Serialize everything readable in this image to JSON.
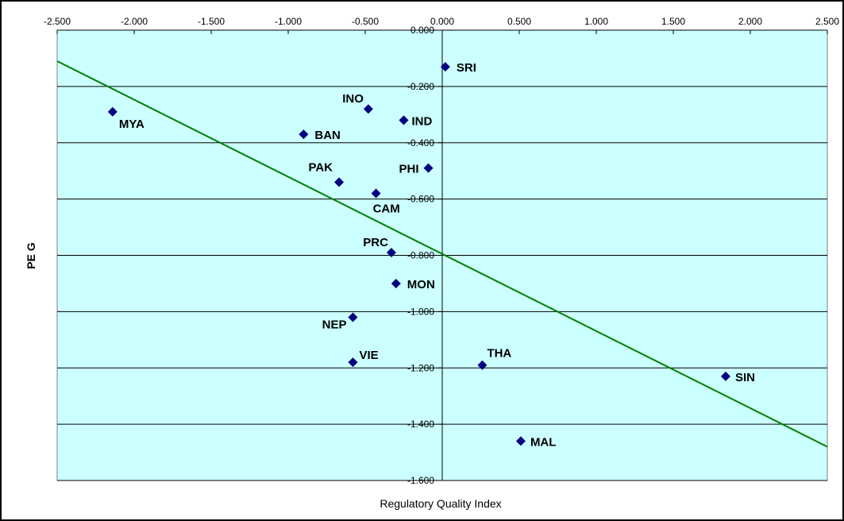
{
  "chart_data": {
    "type": "scatter",
    "title": "",
    "xlabel": "Regulatory Quality Index",
    "ylabel": "PE G",
    "xlim": [
      -2.5,
      2.5
    ],
    "ylim": [
      -1.6,
      0.0
    ],
    "x_ticks": [
      "-2.500",
      "-2.000",
      "-1.500",
      "-1.000",
      "-0.500",
      "0.000",
      "0.500",
      "1.000",
      "1.500",
      "2.000",
      "2.500"
    ],
    "y_ticks": [
      "0.000",
      "-0.200",
      "-0.400",
      "-0.600",
      "-0.800",
      "-1.000",
      "-1.200",
      "-1.400",
      "-1.600"
    ],
    "grid": "horizontal",
    "colors": {
      "plot_background": "#ccffff",
      "marker": "#000080",
      "trend": "#008000",
      "grid": "#000000"
    },
    "marker": "diamond",
    "points": [
      {
        "label": "SRI",
        "x": 0.02,
        "y": -0.13
      },
      {
        "label": "INO",
        "x": -0.48,
        "y": -0.28
      },
      {
        "label": "MYA",
        "x": -2.14,
        "y": -0.29
      },
      {
        "label": "IND",
        "x": -0.25,
        "y": -0.32
      },
      {
        "label": "BAN",
        "x": -0.9,
        "y": -0.37
      },
      {
        "label": "PHI",
        "x": -0.09,
        "y": -0.49
      },
      {
        "label": "PAK",
        "x": -0.67,
        "y": -0.54
      },
      {
        "label": "CAM",
        "x": -0.43,
        "y": -0.58
      },
      {
        "label": "PRC",
        "x": -0.33,
        "y": -0.79
      },
      {
        "label": "MON",
        "x": -0.3,
        "y": -0.9
      },
      {
        "label": "NEP",
        "x": -0.58,
        "y": -1.02
      },
      {
        "label": "VIE",
        "x": -0.58,
        "y": -1.18
      },
      {
        "label": "THA",
        "x": 0.26,
        "y": -1.19
      },
      {
        "label": "SIN",
        "x": 1.84,
        "y": -1.23
      },
      {
        "label": "MAL",
        "x": 0.51,
        "y": -1.46
      }
    ],
    "trendline": {
      "x": [
        -2.5,
        2.5
      ],
      "y": [
        -0.11,
        -1.48
      ]
    }
  }
}
